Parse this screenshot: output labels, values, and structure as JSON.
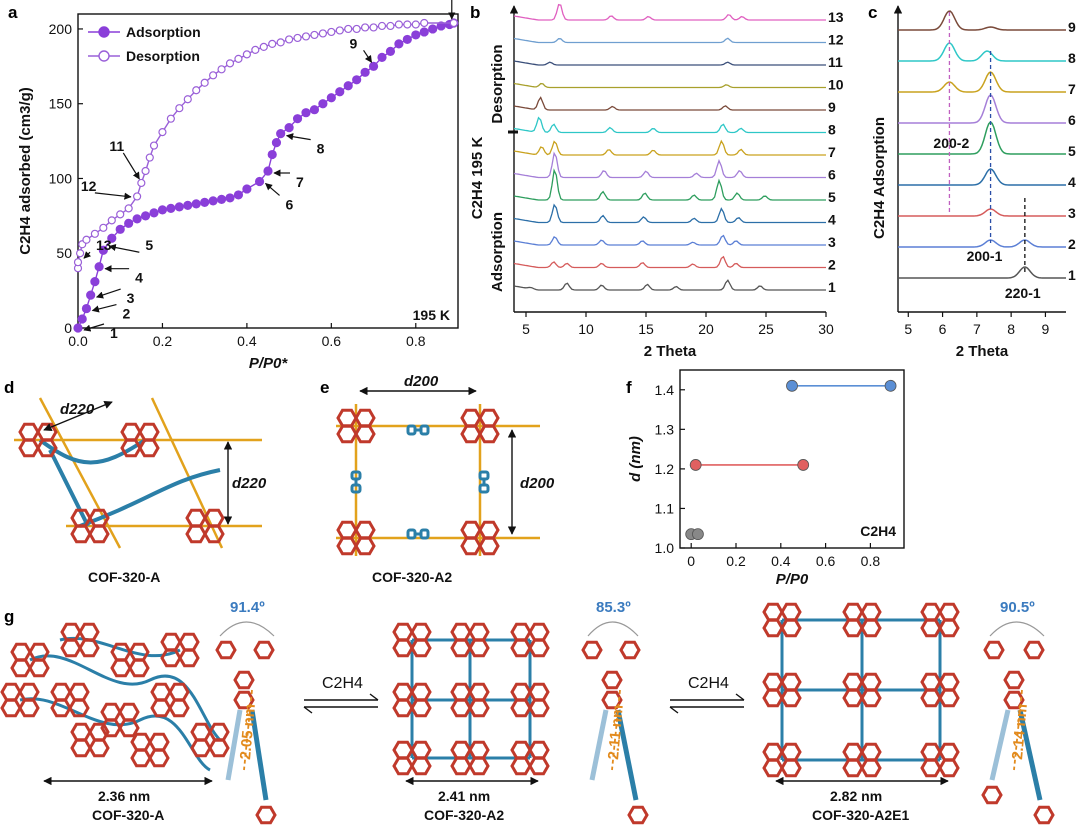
{
  "colors": {
    "adsorption": "#8a3fd9",
    "desorption": "#9a60d8",
    "gold": "#e2a21c",
    "red_ring": "#c0392b",
    "blue_link": "#2b7fa8",
    "angle_blue": "#3b7bbf",
    "dist_orange": "#e28a1c"
  },
  "panel_labels": {
    "a": "a",
    "b": "b",
    "c": "c",
    "d": "d",
    "e": "e",
    "f": "f",
    "g": "g"
  },
  "chart_data": [
    {
      "id": "a",
      "type": "line",
      "xlabel": "P/P0*",
      "ylabel": "C2H4 adsorbed (cm3/g)",
      "xlim": [
        0,
        0.9
      ],
      "ylim": [
        0,
        210
      ],
      "xticks": [
        "0.0",
        "0.2",
        "0.4",
        "0.6",
        "0.8"
      ],
      "yticks": [
        "0",
        "50",
        "100",
        "150",
        "200"
      ],
      "legend": [
        "Adsorption",
        "Desorption"
      ],
      "corner_label": "195 K",
      "series": [
        {
          "name": "Adsorption",
          "points": [
            [
              0.0,
              0
            ],
            [
              0.01,
              6
            ],
            [
              0.02,
              13
            ],
            [
              0.03,
              22
            ],
            [
              0.04,
              31
            ],
            [
              0.05,
              41
            ],
            [
              0.06,
              52
            ],
            [
              0.08,
              60
            ],
            [
              0.1,
              66
            ],
            [
              0.12,
              70
            ],
            [
              0.14,
              73
            ],
            [
              0.16,
              75
            ],
            [
              0.18,
              77
            ],
            [
              0.2,
              79
            ],
            [
              0.22,
              80
            ],
            [
              0.24,
              81
            ],
            [
              0.26,
              82
            ],
            [
              0.28,
              83
            ],
            [
              0.3,
              84
            ],
            [
              0.32,
              85
            ],
            [
              0.34,
              86
            ],
            [
              0.36,
              87
            ],
            [
              0.38,
              89
            ],
            [
              0.4,
              93
            ],
            [
              0.43,
              98
            ],
            [
              0.45,
              105
            ],
            [
              0.46,
              116
            ],
            [
              0.47,
              124
            ],
            [
              0.48,
              130
            ],
            [
              0.5,
              134
            ],
            [
              0.52,
              140
            ],
            [
              0.54,
              144
            ],
            [
              0.56,
              146
            ],
            [
              0.58,
              150
            ],
            [
              0.6,
              154
            ],
            [
              0.62,
              158
            ],
            [
              0.64,
              162
            ],
            [
              0.66,
              166
            ],
            [
              0.68,
              171
            ],
            [
              0.7,
              175
            ],
            [
              0.72,
              181
            ],
            [
              0.74,
              185
            ],
            [
              0.76,
              190
            ],
            [
              0.78,
              193
            ],
            [
              0.8,
              196
            ],
            [
              0.82,
              198
            ],
            [
              0.84,
              200
            ],
            [
              0.86,
              202
            ],
            [
              0.88,
              203
            ],
            [
              0.89,
              204
            ]
          ]
        },
        {
          "name": "Desorption",
          "points": [
            [
              0.0,
              40
            ],
            [
              0.0,
              44
            ],
            [
              0.005,
              50
            ],
            [
              0.01,
              56
            ],
            [
              0.02,
              59
            ],
            [
              0.04,
              63
            ],
            [
              0.06,
              67
            ],
            [
              0.08,
              72
            ],
            [
              0.1,
              76
            ],
            [
              0.12,
              80
            ],
            [
              0.14,
              88
            ],
            [
              0.15,
              97
            ],
            [
              0.16,
              105
            ],
            [
              0.17,
              114
            ],
            [
              0.18,
              122
            ],
            [
              0.2,
              131
            ],
            [
              0.22,
              140
            ],
            [
              0.24,
              147
            ],
            [
              0.26,
              153
            ],
            [
              0.28,
              159
            ],
            [
              0.3,
              164
            ],
            [
              0.32,
              169
            ],
            [
              0.34,
              173
            ],
            [
              0.36,
              177
            ],
            [
              0.38,
              180
            ],
            [
              0.4,
              183
            ],
            [
              0.42,
              186
            ],
            [
              0.44,
              188
            ],
            [
              0.46,
              190
            ],
            [
              0.48,
              191
            ],
            [
              0.5,
              193
            ],
            [
              0.52,
              194
            ],
            [
              0.54,
              195
            ],
            [
              0.56,
              196
            ],
            [
              0.58,
              197
            ],
            [
              0.6,
              198
            ],
            [
              0.62,
              199
            ],
            [
              0.64,
              200
            ],
            [
              0.66,
              200
            ],
            [
              0.68,
              201
            ],
            [
              0.7,
              201
            ],
            [
              0.72,
              202
            ],
            [
              0.74,
              202
            ],
            [
              0.76,
              203
            ],
            [
              0.78,
              203
            ],
            [
              0.8,
              203
            ],
            [
              0.82,
              204
            ],
            [
              0.89,
              204
            ]
          ]
        }
      ],
      "point_labels": [
        {
          "n": "1",
          "p": 0.0,
          "v": 0
        },
        {
          "n": "2",
          "p": 0.02,
          "v": 13
        },
        {
          "n": "3",
          "p": 0.03,
          "v": 22
        },
        {
          "n": "4",
          "p": 0.05,
          "v": 41
        },
        {
          "n": "5",
          "p": 0.06,
          "v": 52
        },
        {
          "n": "6",
          "p": 0.43,
          "v": 98
        },
        {
          "n": "7",
          "p": 0.45,
          "v": 105
        },
        {
          "n": "8",
          "p": 0.48,
          "v": 130
        },
        {
          "n": "9",
          "p": 0.7,
          "v": 175
        },
        {
          "n": "10",
          "p": 0.89,
          "v": 204
        },
        {
          "n": "11",
          "p": 0.15,
          "v": 97
        },
        {
          "n": "12",
          "p": 0.13,
          "v": 85
        },
        {
          "n": "13",
          "p": 0.0,
          "v": 44
        }
      ]
    },
    {
      "id": "b",
      "type": "line",
      "xlabel": "2 Theta",
      "ylabel": "C2H4 195 K",
      "xlim": [
        4,
        30
      ],
      "xticks": [
        "5",
        "10",
        "15",
        "20",
        "25",
        "30"
      ],
      "side_labels": {
        "top": "Desorption",
        "bottom": "Adsorption"
      },
      "series": [
        {
          "name": "1",
          "color": "#555555",
          "peaks": [
            [
              5.4,
              0.1
            ],
            [
              8.4,
              0.5
            ],
            [
              11.3,
              0.35
            ],
            [
              15.1,
              0.4
            ],
            [
              17.5,
              0.25
            ],
            [
              21.8,
              0.7
            ],
            [
              24.5,
              0.3
            ]
          ]
        },
        {
          "name": "2",
          "color": "#d55b5b",
          "peaks": [
            [
              7.3,
              0.4
            ],
            [
              8.4,
              0.3
            ],
            [
              11.3,
              0.3
            ],
            [
              14.7,
              0.35
            ],
            [
              18.9,
              0.25
            ],
            [
              21.4,
              0.8
            ],
            [
              22.5,
              0.3
            ]
          ]
        },
        {
          "name": "3",
          "color": "#5b7fd5",
          "peaks": [
            [
              7.4,
              0.6
            ],
            [
              11.3,
              0.35
            ],
            [
              14.7,
              0.3
            ],
            [
              18.9,
              0.2
            ],
            [
              21.4,
              0.7
            ],
            [
              22.5,
              0.3
            ]
          ]
        },
        {
          "name": "4",
          "color": "#2c6fa8",
          "peaks": [
            [
              7.4,
              1.3
            ],
            [
              11.4,
              0.5
            ],
            [
              14.8,
              0.4
            ],
            [
              19.0,
              0.3
            ],
            [
              21.3,
              1.0
            ],
            [
              22.7,
              0.35
            ]
          ]
        },
        {
          "name": "5",
          "color": "#2e9e5e",
          "peaks": [
            [
              7.4,
              2.2
            ],
            [
              11.4,
              0.6
            ],
            [
              14.9,
              0.5
            ],
            [
              19.0,
              0.35
            ],
            [
              21.1,
              1.4
            ],
            [
              22.6,
              0.5
            ],
            [
              24.9,
              0.3
            ]
          ]
        },
        {
          "name": "6",
          "color": "#a57fd8",
          "peaks": [
            [
              7.4,
              1.8
            ],
            [
              11.5,
              0.5
            ],
            [
              15.0,
              0.45
            ],
            [
              19.2,
              0.3
            ],
            [
              21.1,
              1.2
            ],
            [
              22.8,
              0.5
            ]
          ]
        },
        {
          "name": "7",
          "color": "#c9a21e",
          "peaks": [
            [
              6.3,
              0.6
            ],
            [
              7.4,
              1.0
            ],
            [
              11.9,
              0.4
            ],
            [
              15.6,
              0.35
            ],
            [
              21.3,
              1.0
            ],
            [
              22.9,
              0.4
            ]
          ]
        },
        {
          "name": "8",
          "color": "#2ec7c7",
          "peaks": [
            [
              6.1,
              1.1
            ],
            [
              7.3,
              0.6
            ],
            [
              12.0,
              0.35
            ],
            [
              15.6,
              0.3
            ],
            [
              21.4,
              0.6
            ],
            [
              22.9,
              0.3
            ]
          ]
        },
        {
          "name": "9",
          "color": "#7a4a3a",
          "peaks": [
            [
              6.2,
              0.9
            ],
            [
              12.2,
              0.25
            ],
            [
              21.6,
              0.3
            ]
          ]
        },
        {
          "name": "10",
          "color": "#a8a02c",
          "peaks": [
            [
              6.3,
              0.3
            ],
            [
              21.7,
              0.2
            ]
          ]
        },
        {
          "name": "11",
          "color": "#3b4f7a",
          "peaks": [
            [
              7.0,
              0.2
            ],
            [
              21.8,
              0.2
            ]
          ]
        },
        {
          "name": "12",
          "color": "#6f9fd0",
          "peaks": [
            [
              7.8,
              0.3
            ],
            [
              21.8,
              0.3
            ]
          ]
        },
        {
          "name": "13",
          "color": "#e060c0",
          "peaks": [
            [
              7.8,
              1.2
            ],
            [
              12.1,
              0.3
            ],
            [
              15.2,
              0.25
            ],
            [
              21.9,
              0.4
            ],
            [
              23.0,
              0.25
            ]
          ]
        }
      ]
    },
    {
      "id": "c",
      "type": "line",
      "xlabel": "2 Theta",
      "ylabel": "C2H4 Adsorption",
      "xlim": [
        4.7,
        9.6
      ],
      "xticks": [
        "5",
        "6",
        "7",
        "8",
        "9"
      ],
      "annotations": [
        {
          "label": "200-2",
          "x": 6.2
        },
        {
          "label": "200-1",
          "x": 7.4
        },
        {
          "label": "220-1",
          "x": 8.4
        }
      ],
      "series": [
        {
          "name": "1",
          "color": "#555555",
          "peaks": [
            [
              8.4,
              0.55
            ]
          ]
        },
        {
          "name": "2",
          "color": "#5b7fd5",
          "peaks": [
            [
              7.4,
              0.35
            ],
            [
              8.4,
              0.35
            ]
          ]
        },
        {
          "name": "3",
          "color": "#d55b5b",
          "peaks": [
            [
              7.4,
              0.35
            ]
          ]
        },
        {
          "name": "4",
          "color": "#2c6fa8",
          "peaks": [
            [
              7.4,
              0.8
            ]
          ]
        },
        {
          "name": "5",
          "color": "#2e9e5e",
          "peaks": [
            [
              7.4,
              1.6
            ]
          ]
        },
        {
          "name": "6",
          "color": "#a57fd8",
          "peaks": [
            [
              7.4,
              1.4
            ]
          ]
        },
        {
          "name": "7",
          "color": "#c9a21e",
          "peaks": [
            [
              6.2,
              0.5
            ],
            [
              7.4,
              1.0
            ]
          ]
        },
        {
          "name": "8",
          "color": "#2ec7c7",
          "peaks": [
            [
              6.2,
              0.9
            ],
            [
              7.3,
              0.5
            ]
          ]
        },
        {
          "name": "9",
          "color": "#7a4a3a",
          "peaks": [
            [
              6.2,
              0.95
            ],
            [
              7.4,
              0.15
            ]
          ]
        }
      ]
    },
    {
      "id": "f",
      "type": "scatter",
      "xlabel": "P/P0",
      "ylabel": "d (nm)",
      "xlim": [
        -0.05,
        0.95
      ],
      "ylim": [
        1.0,
        1.45
      ],
      "xticks": [
        "0",
        "0.2",
        "0.4",
        "0.6",
        "0.8"
      ],
      "yticks": [
        "1.0",
        "1.1",
        "1.2",
        "1.3",
        "1.4"
      ],
      "corner_label": "C2H4",
      "series": [
        {
          "name": "COF-320-A",
          "color": "#888888",
          "points": [
            [
              0.0,
              1.035
            ],
            [
              0.03,
              1.035
            ]
          ]
        },
        {
          "name": "COF-320-A2",
          "color": "#e06060",
          "points": [
            [
              0.02,
              1.21
            ],
            [
              0.5,
              1.21
            ]
          ]
        },
        {
          "name": "COF-320-A2E1",
          "color": "#5b8fd5",
          "points": [
            [
              0.45,
              1.41
            ],
            [
              0.89,
              1.41
            ]
          ]
        }
      ]
    }
  ],
  "panel_d": {
    "distance_labels": [
      "d220",
      "d220"
    ],
    "caption": "COF-320-A"
  },
  "panel_e": {
    "distance_labels": [
      "d200",
      "d200"
    ],
    "caption": "COF-320-A2"
  },
  "panel_g": {
    "structures": [
      {
        "caption": "COF-320-A",
        "width": "2.36 nm",
        "angle": "91.4º",
        "length": "2.05 nm"
      },
      {
        "caption": "COF-320-A2",
        "width": "2.41 nm",
        "angle": "85.3º",
        "length": "2.11 nm"
      },
      {
        "caption": "COF-320-A2E1",
        "width": "2.82 nm",
        "angle": "90.5º",
        "length": "2.14 nm"
      }
    ],
    "arrow_labels": [
      "C2H4",
      "C2H4"
    ]
  }
}
